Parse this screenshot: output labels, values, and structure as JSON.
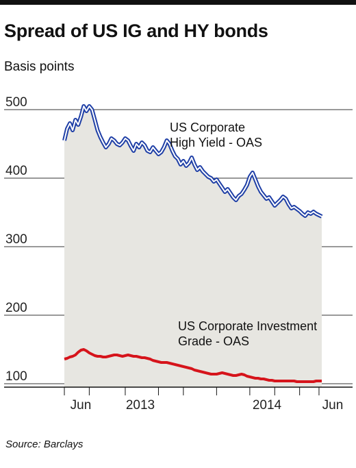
{
  "title": "Spread of US IG and HY bonds",
  "subtitle": "Basis points",
  "source": "Source: Barclays",
  "chart_data": {
    "type": "line",
    "ylabel": "Basis points",
    "ylim": [
      90,
      520
    ],
    "yticks": [
      100,
      200,
      300,
      400,
      500
    ],
    "grid": true,
    "area_fill": "#e7e6e1",
    "x": [
      0,
      1,
      2,
      3,
      4,
      5,
      6,
      7,
      8,
      9,
      10,
      11,
      12,
      13,
      14,
      15,
      16,
      17,
      18,
      19,
      20,
      21,
      22,
      23,
      24,
      25,
      26,
      27,
      28,
      29,
      30,
      31,
      32,
      33,
      34,
      35,
      36,
      37,
      38,
      39,
      40,
      41,
      42,
      43,
      44,
      45,
      46,
      47,
      48,
      49,
      50,
      51,
      52,
      53,
      54,
      55,
      56,
      57,
      58,
      59,
      60,
      61,
      62,
      63,
      64,
      65,
      66,
      67,
      68,
      69,
      70,
      71,
      72,
      73,
      74,
      75,
      76,
      77,
      78,
      79,
      80,
      81,
      82,
      83,
      84,
      85,
      86,
      87,
      88,
      89,
      90,
      91,
      92,
      93
    ],
    "x_tick_labels": [
      "Jun",
      "2013",
      "2014",
      "Jun"
    ],
    "series": [
      {
        "name": "US Corporate High Yield - OAS",
        "color": "#1f3fa6",
        "values": [
          455,
          472,
          480,
          470,
          485,
          478,
          490,
          505,
          498,
          505,
          500,
          485,
          470,
          460,
          452,
          445,
          450,
          458,
          455,
          450,
          448,
          452,
          458,
          455,
          447,
          440,
          450,
          445,
          452,
          448,
          440,
          438,
          445,
          440,
          435,
          438,
          445,
          455,
          450,
          440,
          432,
          428,
          420,
          425,
          418,
          422,
          430,
          420,
          412,
          416,
          410,
          406,
          402,
          400,
          395,
          398,
          392,
          386,
          380,
          384,
          378,
          372,
          368,
          374,
          377,
          383,
          390,
          402,
          408,
          398,
          388,
          380,
          375,
          370,
          372,
          366,
          360,
          364,
          368,
          373,
          370,
          362,
          356,
          358,
          355,
          352,
          348,
          345,
          350,
          348,
          351,
          348,
          346,
          344
        ]
      },
      {
        "name": "US Corporate Investment Grade - OAS",
        "color": "#d6141b",
        "values": [
          136,
          137,
          139,
          140,
          142,
          146,
          149,
          150,
          148,
          145,
          143,
          141,
          140,
          140,
          139,
          139,
          140,
          141,
          142,
          142,
          141,
          140,
          141,
          142,
          141,
          140,
          140,
          139,
          138,
          138,
          137,
          136,
          134,
          133,
          132,
          131,
          131,
          131,
          130,
          129,
          128,
          127,
          126,
          125,
          124,
          123,
          122,
          120,
          119,
          118,
          117,
          116,
          115,
          114,
          114,
          114,
          115,
          116,
          115,
          114,
          113,
          112,
          112,
          113,
          114,
          113,
          111,
          110,
          109,
          108,
          108,
          107,
          107,
          106,
          105,
          105,
          104,
          104,
          104,
          104,
          104,
          104,
          104,
          104,
          103,
          103,
          103,
          103,
          103,
          103,
          103,
          104,
          104,
          104
        ]
      }
    ],
    "annotations": [
      {
        "lines": [
          "US Corporate",
          "High Yield - OAS"
        ]
      },
      {
        "lines": [
          "US Corporate Investment",
          "Grade - OAS"
        ]
      }
    ]
  }
}
